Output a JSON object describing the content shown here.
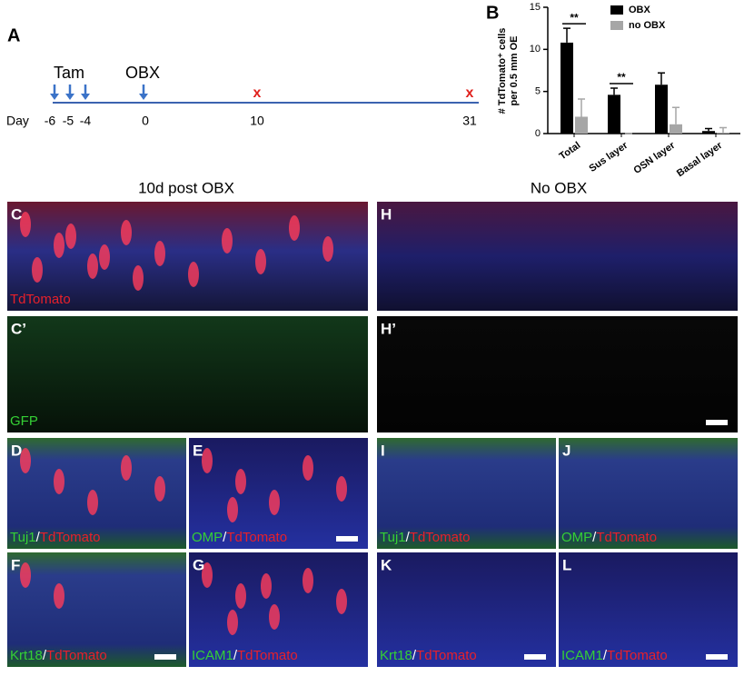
{
  "panel_a": {
    "label": "A",
    "tam": "Tam",
    "obx": "OBX",
    "day": "Day",
    "days": [
      "-6",
      "-5",
      "-4",
      "0",
      "10",
      "31"
    ],
    "marks": [
      "x",
      "x"
    ]
  },
  "chart_data": {
    "type": "bar",
    "label": "B",
    "y_label": [
      "# TdTomato⁺ cells",
      "per 0.5 mm OE"
    ],
    "categories": [
      "Total",
      "Sus layer",
      "OSN layer",
      "Basal layer"
    ],
    "series": [
      {
        "name": "OBX",
        "color": "#000000",
        "values": [
          10.8,
          4.6,
          5.8,
          0.3
        ],
        "errors": [
          1.7,
          0.8,
          1.4,
          0.3
        ]
      },
      {
        "name": "no OBX",
        "color": "#a6a6a6",
        "values": [
          2.0,
          0,
          1.1,
          0.1
        ],
        "errors": [
          2.1,
          0,
          2.0,
          0.6
        ]
      }
    ],
    "significance": [
      "**",
      "**",
      null,
      null
    ],
    "ylim": [
      0,
      15
    ],
    "yticks": [
      0,
      5,
      10,
      15
    ]
  },
  "headers": [
    "10d post OBX",
    "No OBX"
  ],
  "panels": [
    {
      "label": "C",
      "caption": [
        "TdTomato"
      ]
    },
    {
      "label": "C’",
      "caption": [
        "GFP"
      ]
    },
    {
      "label": "H",
      "caption": []
    },
    {
      "label": "H’",
      "caption": []
    },
    {
      "label": "D",
      "caption": [
        "Tuj1",
        "/",
        "TdTomato"
      ]
    },
    {
      "label": "E",
      "caption": [
        "OMP",
        "/",
        "TdTomato"
      ]
    },
    {
      "label": "I",
      "caption": [
        "Tuj1",
        "/",
        "TdTomato"
      ]
    },
    {
      "label": "J",
      "caption": [
        "OMP",
        "/",
        "TdTomato"
      ]
    },
    {
      "label": "F",
      "caption": [
        "Krt18",
        "/",
        "TdTomato"
      ]
    },
    {
      "label": "G",
      "caption": [
        "ICAM1",
        "/",
        "TdTomato"
      ]
    },
    {
      "label": "K",
      "caption": [
        "Krt18",
        "/",
        "TdTomato"
      ]
    },
    {
      "label": "L",
      "caption": [
        "ICAM1",
        "/",
        "TdTomato"
      ]
    }
  ]
}
